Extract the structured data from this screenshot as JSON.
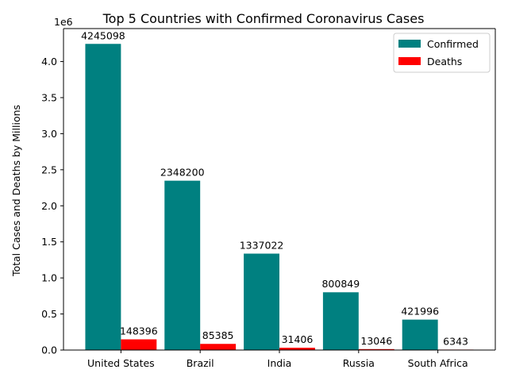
{
  "chart_data": {
    "type": "bar",
    "title": "Top 5 Countries with Confirmed Coronavirus Cases",
    "xlabel": "",
    "ylabel": "Total Cases and Deaths by Millions",
    "y_offset_text": "1e6",
    "categories": [
      "United States",
      "Brazil",
      "India",
      "Russia",
      "South Africa"
    ],
    "series": [
      {
        "name": "Confirmed",
        "color": "#008080",
        "values": [
          4245098,
          2348200,
          1337022,
          800849,
          421996
        ]
      },
      {
        "name": "Deaths",
        "color": "#ff0000",
        "values": [
          148396,
          85385,
          31406,
          13046,
          6343
        ]
      }
    ],
    "ylim": [
      0,
      4457353
    ],
    "yticks": [
      0,
      500000,
      1000000,
      1500000,
      2000000,
      2500000,
      3000000,
      3500000,
      4000000
    ],
    "ytick_labels": [
      "0.0",
      "0.5",
      "1.0",
      "1.5",
      "2.0",
      "2.5",
      "3.0",
      "3.5",
      "4.0"
    ],
    "legend_position": "top-right",
    "grid": false
  }
}
